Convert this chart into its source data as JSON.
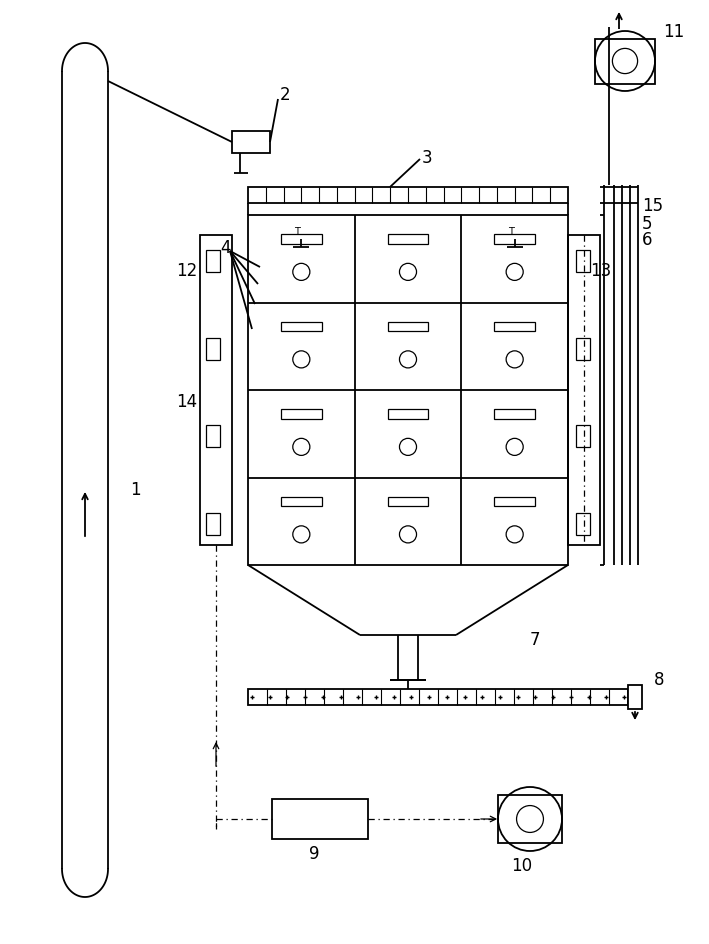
{
  "fig_width": 7.09,
  "fig_height": 9.45,
  "dpi": 100,
  "bg_color": "#ffffff",
  "lc": "#000000",
  "lw": 1.3
}
